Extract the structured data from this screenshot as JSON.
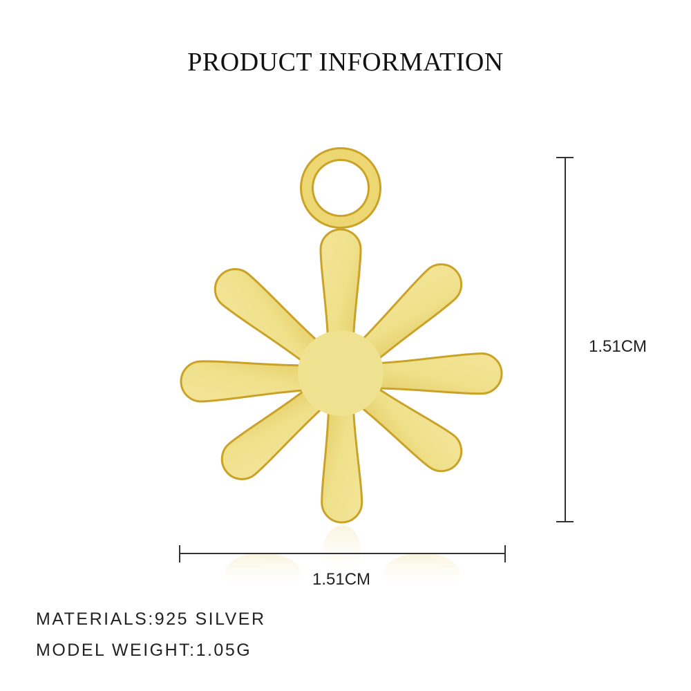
{
  "title": "PRODUCT INFORMATION",
  "product": {
    "type": "flower pendant charm",
    "color": "#ecd978",
    "edge_color": "#c9a227"
  },
  "dimensions": {
    "height": "1.51CM",
    "width": "1.51CM"
  },
  "specs": {
    "materials": "MATERIALS:925 SILVER",
    "weight": "MODEL WEIGHT:1.05G"
  }
}
